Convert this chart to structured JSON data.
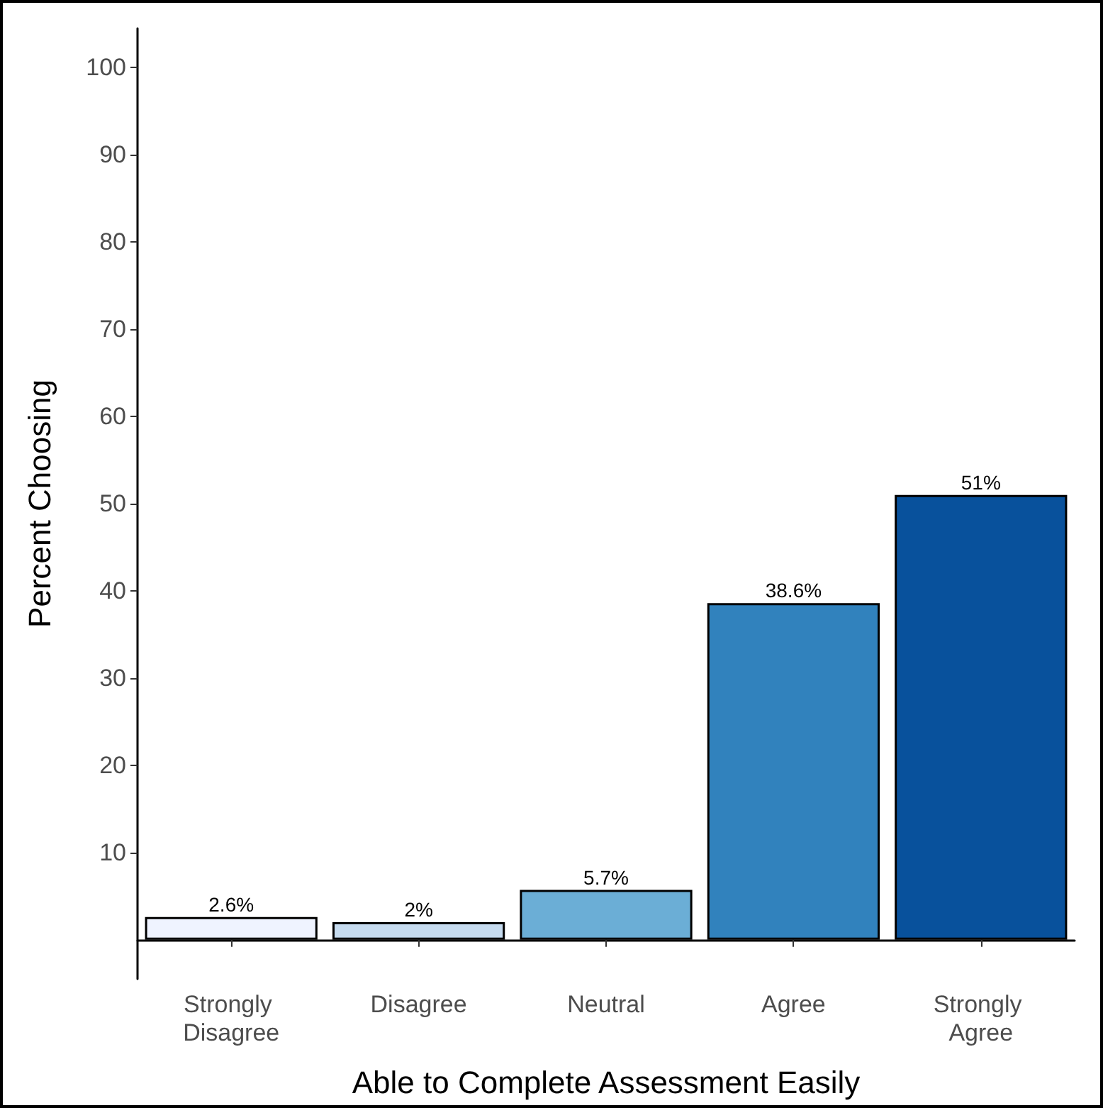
{
  "chart_data": {
    "type": "bar",
    "xlabel": "Able to Complete Assessment Easily",
    "ylabel": "Percent Choosing",
    "categories": [
      "Strongly Disagree",
      "Disagree",
      "Neutral",
      "Agree",
      "Strongly Agree"
    ],
    "values": [
      2.6,
      2,
      5.7,
      38.6,
      51
    ],
    "colors": [
      "#eff3ff",
      "#c6dbef",
      "#6baed6",
      "#3182bd",
      "#08519c"
    ],
    "value_labels": [
      "2.6%",
      "2%",
      "5.7%",
      "38.6%",
      "51%"
    ],
    "ylim": [
      -4.5,
      104.5
    ],
    "yticks": [
      10,
      20,
      30,
      40,
      50,
      60,
      70,
      80,
      90,
      100
    ],
    "grid": false
  }
}
